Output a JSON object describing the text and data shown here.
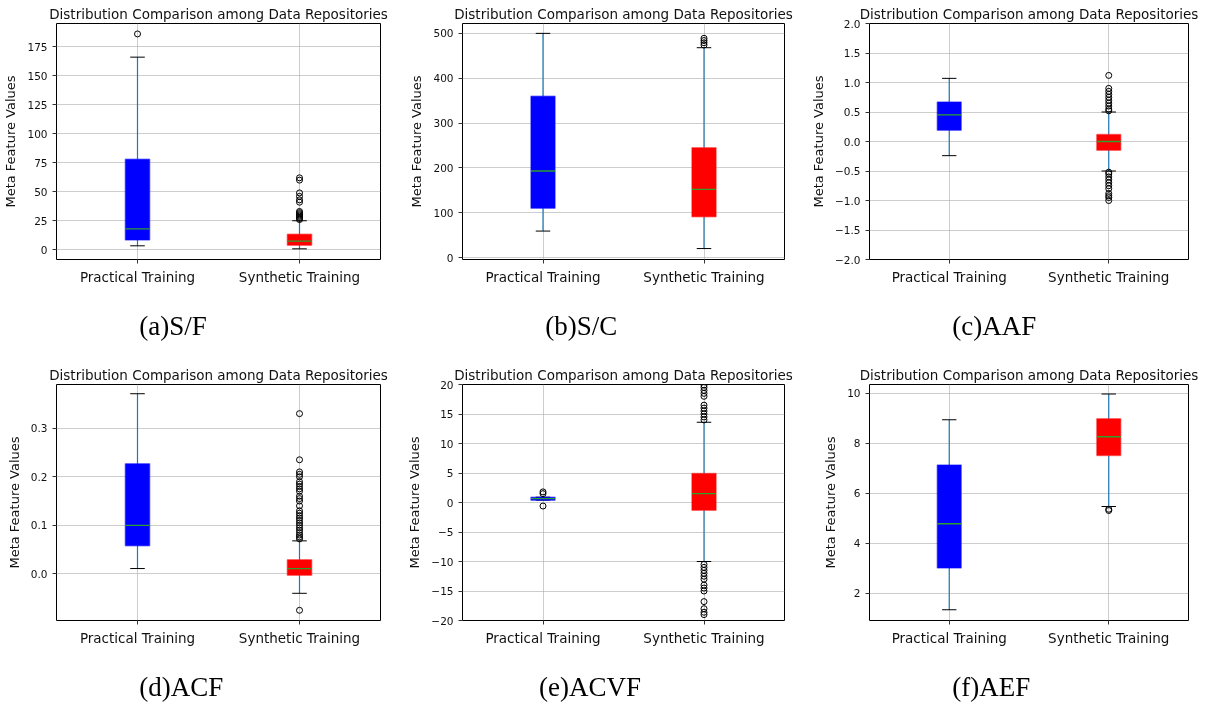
{
  "chart_data": [
    {
      "type": "box",
      "title": "Distribution Comparison among Data Repositories",
      "ylabel": "Meta Feature Values",
      "categories": [
        "Practical Training",
        "Synthetic Training"
      ],
      "colors": [
        "#0000ff",
        "#ff0000"
      ],
      "boxes": [
        {
          "low": 3.4,
          "q1": 8.5,
          "median": 18,
          "q3": 78,
          "high": 166,
          "outliers": [
            186
          ]
        },
        {
          "low": 0.8,
          "q1": 3.9,
          "median": 7.5,
          "q3": 13.4,
          "high": 25,
          "outliers": [
            26,
            27,
            28,
            29,
            30,
            31,
            32,
            33,
            41,
            43,
            46,
            49,
            60,
            62
          ]
        }
      ],
      "ylim": [
        -8.4,
        195
      ],
      "yticks": [
        0,
        25,
        50,
        75,
        100,
        125,
        150,
        175
      ],
      "grid": true,
      "annotations": [
        "(a)S/F"
      ]
    },
    {
      "type": "box",
      "title": "Distribution Comparison among Data Repositories",
      "ylabel": "Meta Feature Values",
      "categories": [
        "Practical Training",
        "Synthetic Training"
      ],
      "colors": [
        "#0000ff",
        "#ff0000"
      ],
      "boxes": [
        {
          "low": 59,
          "q1": 110,
          "median": 193,
          "q3": 360,
          "high": 500
        },
        {
          "low": 20,
          "q1": 91,
          "median": 152,
          "q3": 245,
          "high": 468,
          "outliers": [
            474,
            479,
            484,
            489
          ]
        }
      ],
      "ylim": [
        -4.4,
        522
      ],
      "yticks": [
        0,
        100,
        200,
        300,
        400,
        500
      ],
      "grid": true,
      "annotations": [
        "(b)S/C"
      ]
    },
    {
      "type": "box",
      "title": "Distribution Comparison among Data Repositories",
      "ylabel": "Meta Feature Values",
      "categories": [
        "Practical Training",
        "Synthetic Training"
      ],
      "colors": [
        "#0000ff",
        "#ff0000"
      ],
      "boxes": [
        {
          "low": -0.24,
          "q1": 0.19,
          "median": 0.45,
          "q3": 0.67,
          "high": 1.07
        },
        {
          "low": -0.5,
          "q1": -0.15,
          "median": 0.0,
          "q3": 0.12,
          "high": 0.5,
          "outliers": [
            0.52,
            0.55,
            0.6,
            0.65,
            0.7,
            0.75,
            0.8,
            0.85,
            0.9,
            1.12,
            -0.52,
            -0.55,
            -0.6,
            -0.65,
            -0.7,
            -0.75,
            -0.8,
            -0.88,
            -0.92,
            -0.95,
            -1.0
          ]
        }
      ],
      "ylim": [
        -2,
        2
      ],
      "yticks": [
        {
          "value": -2,
          "label": "−2.0"
        },
        {
          "value": -1.5,
          "label": "−1.5"
        },
        {
          "value": -1,
          "label": "−1.0"
        },
        {
          "value": -0.5,
          "label": "−0.5"
        },
        {
          "value": 0,
          "label": "0.0"
        },
        {
          "value": 0.5,
          "label": "0.5"
        },
        {
          "value": 1,
          "label": "1.0"
        },
        {
          "value": 1.5,
          "label": "1.5"
        },
        {
          "value": 2,
          "label": "2.0"
        }
      ],
      "grid": true,
      "annotations": [
        "(c)AAF"
      ]
    },
    {
      "type": "box",
      "title": "Distribution Comparison among Data Repositories",
      "ylabel": "Meta Feature Values",
      "categories": [
        "Practical Training",
        "Synthetic Training"
      ],
      "colors": [
        "#0000ff",
        "#ff0000"
      ],
      "boxes": [
        {
          "low": 0.011,
          "q1": 0.058,
          "median": 0.1,
          "q3": 0.227,
          "high": 0.371
        },
        {
          "low": -0.04,
          "q1": -0.003,
          "median": 0.011,
          "q3": 0.029,
          "high": 0.068,
          "outliers": [
            -0.075,
            0.072,
            0.076,
            0.08,
            0.085,
            0.09,
            0.095,
            0.1,
            0.105,
            0.11,
            0.115,
            0.12,
            0.125,
            0.13,
            0.14,
            0.15,
            0.155,
            0.16,
            0.17,
            0.175,
            0.18,
            0.185,
            0.19,
            0.2,
            0.205,
            0.21,
            0.235,
            0.33
          ]
        }
      ],
      "ylim": [
        -0.096,
        0.39
      ],
      "yticks": [
        {
          "value": 0,
          "label": "0.0"
        },
        {
          "value": 0.1,
          "label": "0.1"
        },
        {
          "value": 0.2,
          "label": "0.2"
        },
        {
          "value": 0.3,
          "label": "0.3"
        }
      ],
      "grid": true,
      "annotations": [
        "(d)ACF"
      ]
    },
    {
      "type": "box",
      "title": "Distribution Comparison among Data Repositories",
      "ylabel": "Meta Feature Values",
      "categories": [
        "Practical Training",
        "Synthetic Training"
      ],
      "colors": [
        "#0000ff",
        "#ff0000"
      ],
      "boxes": [
        {
          "low": 0.4,
          "q1": 0.4,
          "median": 0.65,
          "q3": 0.9,
          "high": 0.9,
          "outliers": [
            1.5,
            1.8,
            -0.6
          ]
        },
        {
          "low": -10,
          "q1": -1.3,
          "median": 1.5,
          "q3": 4.9,
          "high": 13.6,
          "outliers": [
            14,
            14.5,
            15,
            15.5,
            16,
            16.5,
            18,
            18.5,
            19,
            19.5,
            19.9,
            -10.5,
            -11,
            -11.5,
            -12,
            -12.5,
            -13,
            -14,
            -14.5,
            -15,
            -16.8,
            -18,
            -18.6,
            -19
          ]
        }
      ],
      "ylim": [
        -20,
        20
      ],
      "yticks": [
        {
          "value": -20,
          "label": "−20"
        },
        {
          "value": -15,
          "label": "−15"
        },
        {
          "value": -10,
          "label": "−10"
        },
        {
          "value": -5,
          "label": "−5"
        },
        0,
        5,
        10,
        15,
        20
      ],
      "grid": true,
      "annotations": [
        "(e)ACVF"
      ]
    },
    {
      "type": "box",
      "title": "Distribution Comparison among Data Repositories",
      "ylabel": "Meta Feature Values",
      "categories": [
        "Practical Training",
        "Synthetic Training"
      ],
      "colors": [
        "#0000ff",
        "#ff0000"
      ],
      "boxes": [
        {
          "low": 1.33,
          "q1": 3.0,
          "median": 4.77,
          "q3": 7.12,
          "high": 8.93
        },
        {
          "low": 5.46,
          "q1": 7.5,
          "median": 8.25,
          "q3": 8.97,
          "high": 9.96,
          "outliers": [
            5.3,
            5.35
          ]
        }
      ],
      "ylim": [
        0.9,
        10.34
      ],
      "yticks": [
        2,
        4,
        6,
        8,
        10
      ],
      "grid": true,
      "annotations": [
        "(f)AEF"
      ]
    }
  ]
}
